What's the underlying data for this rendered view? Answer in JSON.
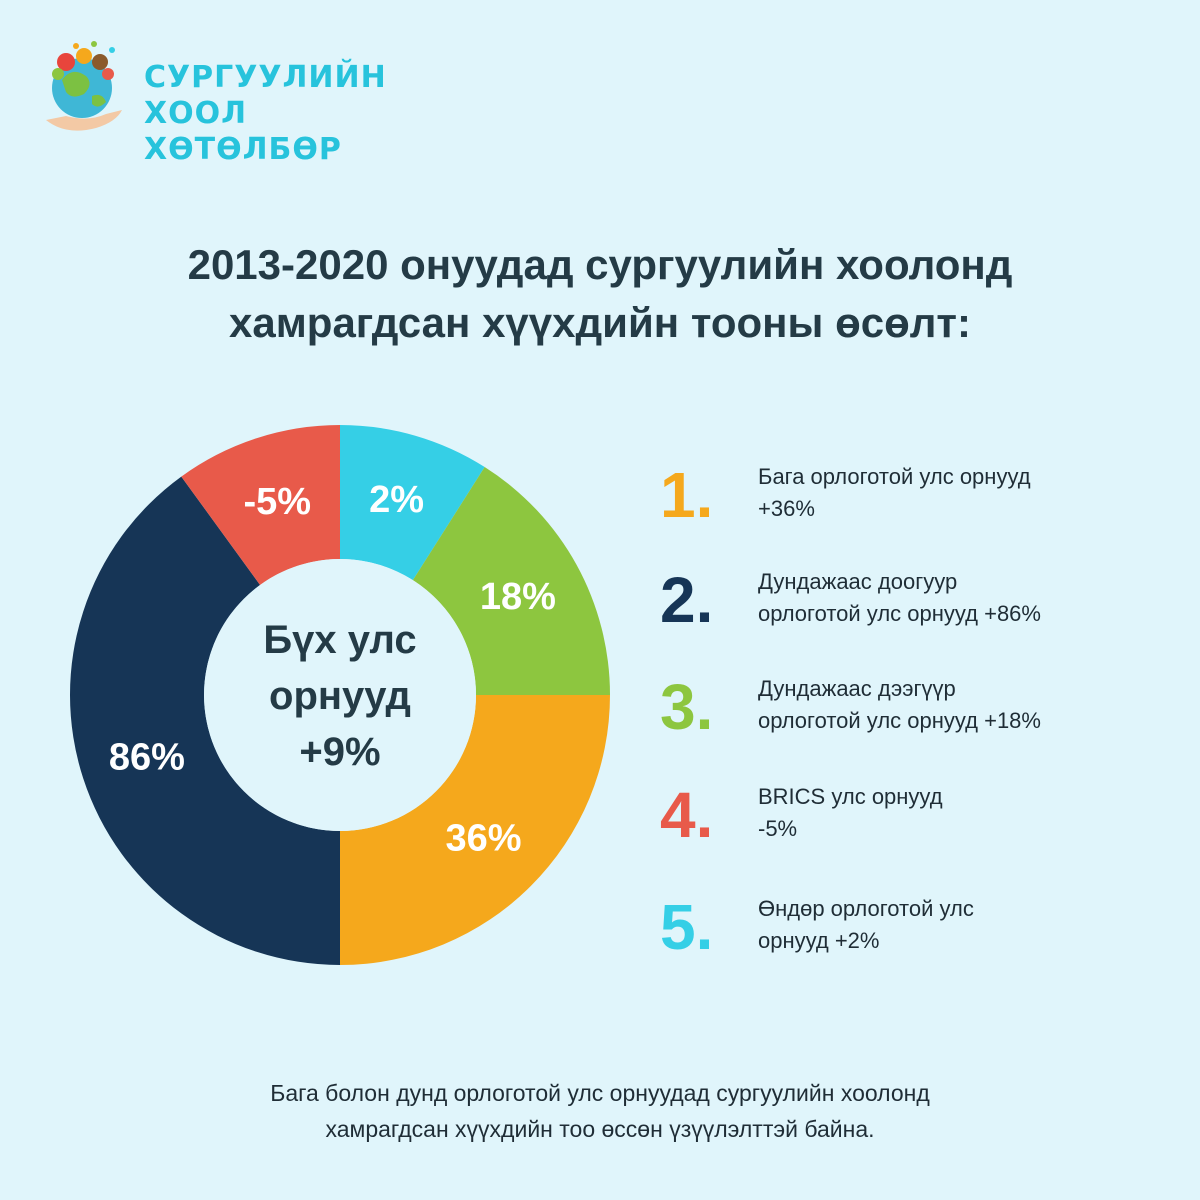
{
  "brand": {
    "line1": "СУРГУУЛИЙН ХООЛ",
    "line2": "ХӨТӨЛБӨР",
    "color": "#27c3dc"
  },
  "title": {
    "line1": "2013-2020 онуудад сургуулийн хоолонд",
    "line2": "хамрагдсан хүүхдийн тооны өсөлт:"
  },
  "center": {
    "line1": "Бүх улс",
    "line2": "орнууд",
    "line3": "+9%"
  },
  "legend": [
    {
      "number": "1.",
      "line1": "Бага орлоготой улс орнууд",
      "line2": " +36%",
      "color": "#f5a81c"
    },
    {
      "number": "2.",
      "line1": "Дундажаас доогуур",
      "line2": "орлоготой улс орнууд +86%",
      "color": "#163556"
    },
    {
      "number": "3.",
      "line1": "Дундажаас дээгүүр",
      "line2": "орлоготой улс орнууд +18%",
      "color": "#8dc63f"
    },
    {
      "number": "4.",
      "line1": " BRICS улс орнууд",
      "line2": "-5%",
      "color": "#e85a4a"
    },
    {
      "number": "5.",
      "line1": "Өндөр орлоготой улс",
      "line2": "орнууд +2%",
      "color": "#35cfe6"
    }
  ],
  "footer": {
    "line1": "Бага болон дунд орлоготой улс орнуудад сургуулийн хоолонд",
    "line2": "хамрагдсан хүүхдийн тоо өссөн үзүүлэлттэй байна."
  },
  "chart_data": {
    "type": "pie",
    "donut": true,
    "categories": [
      "2%",
      "18%",
      "36%",
      "86%",
      "-5%"
    ],
    "values": [
      9,
      16,
      25,
      40,
      10
    ],
    "labels": [
      "2%",
      "18%",
      "36%",
      "86%",
      "-5%"
    ],
    "colors": [
      "#35cfe6",
      "#8dc63f",
      "#f5a81c",
      "#163556",
      "#e85a4a"
    ],
    "center_text": "Бүх улс орнууд +9%"
  }
}
